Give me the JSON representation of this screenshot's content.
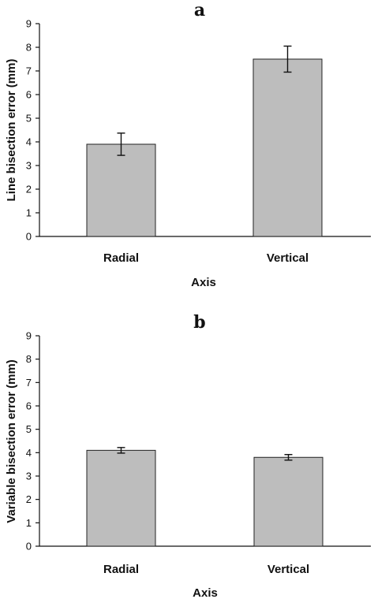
{
  "chart_data": [
    {
      "type": "bar",
      "panel_label": "a",
      "categories": [
        "Radial",
        "Vertical"
      ],
      "values": [
        3.9,
        7.5
      ],
      "errors": [
        0.47,
        0.55
      ],
      "xlabel": "Axis",
      "ylabel": "Line bisection error (mm)",
      "ylim": [
        0,
        9
      ],
      "yticks": [
        "0",
        "1",
        "2",
        "3",
        "4",
        "5",
        "6",
        "7",
        "8",
        "9"
      ],
      "bar_color": "#bdbdbd",
      "grid": false
    },
    {
      "type": "bar",
      "panel_label": "b",
      "categories": [
        "Radial",
        "Vertical"
      ],
      "values": [
        4.1,
        3.8
      ],
      "errors": [
        0.12,
        0.12
      ],
      "xlabel": "Axis",
      "ylabel": "Variable bisection error (mm)",
      "ylim": [
        0,
        9
      ],
      "yticks": [
        "0",
        "1",
        "2",
        "3",
        "4",
        "5",
        "6",
        "7",
        "8",
        "9"
      ],
      "bar_color": "#bdbdbd",
      "grid": false
    }
  ]
}
